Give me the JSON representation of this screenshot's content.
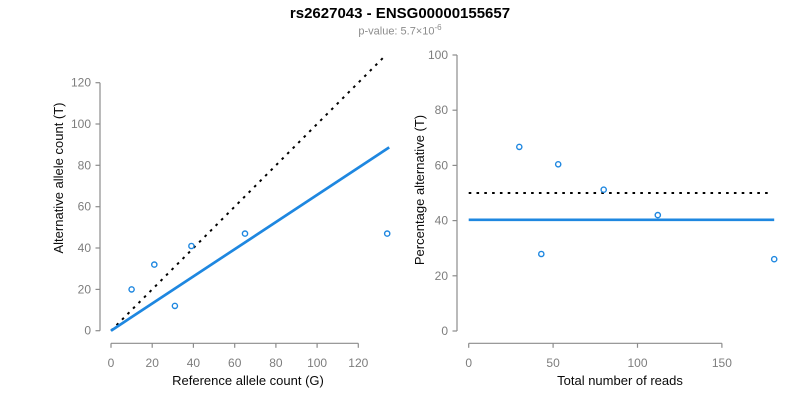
{
  "header": {
    "title": "rs2627043 - ENSG00000155657",
    "subtitle": {
      "text": "p-value: 5.7×10",
      "superscript": "-6"
    }
  },
  "colors": {
    "accent_blue": "#1E87E0",
    "line_black": "#000000",
    "axis_gray": "#8C8C8C",
    "tick_label_gray": "#7D7D7D",
    "subtitle_gray": "#8C8C8C",
    "title_color": "#000000",
    "background": "#FFFFFF"
  },
  "chart_data": [
    {
      "type": "scatter",
      "panel": "left",
      "xlabel": "Reference allele count (G)",
      "ylabel": "Alternative allele count (T)",
      "xticks": [
        0,
        20,
        40,
        60,
        80,
        100,
        120
      ],
      "yticks": [
        0,
        20,
        40,
        60,
        80,
        100,
        120
      ],
      "xlim": [
        0,
        135
      ],
      "ylim": [
        0,
        133
      ],
      "grid": false,
      "legend": null,
      "point_style": "open-circle",
      "points": [
        {
          "x": 10,
          "y": 20
        },
        {
          "x": 21,
          "y": 32
        },
        {
          "x": 31,
          "y": 12
        },
        {
          "x": 39,
          "y": 41
        },
        {
          "x": 65,
          "y": 47
        },
        {
          "x": 134,
          "y": 47
        }
      ],
      "lines": [
        {
          "name": "identity-line",
          "style": "dotted",
          "color": "#000000",
          "x": [
            0,
            133.5
          ],
          "y": [
            0,
            133.5
          ]
        },
        {
          "name": "fit-line",
          "style": "solid",
          "color": "#1E87E0",
          "x": [
            0,
            135
          ],
          "y": [
            0,
            88.7
          ]
        }
      ]
    },
    {
      "type": "scatter",
      "panel": "right",
      "xlabel": "Total number of reads",
      "ylabel": "Percentage alternative (T)",
      "xticks": [
        0,
        50,
        100,
        150
      ],
      "yticks": [
        0,
        20,
        40,
        60,
        80,
        100
      ],
      "xlim": [
        0,
        182
      ],
      "ylim": [
        0,
        100
      ],
      "grid": false,
      "legend": null,
      "point_style": "open-circle",
      "points": [
        {
          "x": 30,
          "y": 66.7
        },
        {
          "x": 43,
          "y": 27.9
        },
        {
          "x": 53,
          "y": 60.4
        },
        {
          "x": 80,
          "y": 51.2
        },
        {
          "x": 112,
          "y": 42.0
        },
        {
          "x": 181,
          "y": 26.0
        }
      ],
      "lines": [
        {
          "name": "expected-percentage-line",
          "style": "dotted",
          "color": "#000000",
          "x": [
            0,
            178
          ],
          "y": [
            50,
            50
          ]
        },
        {
          "name": "mean-percentage-line",
          "style": "solid",
          "color": "#1E87E0",
          "x": [
            0,
            181
          ],
          "y": [
            40.3,
            40.3
          ]
        }
      ]
    }
  ]
}
